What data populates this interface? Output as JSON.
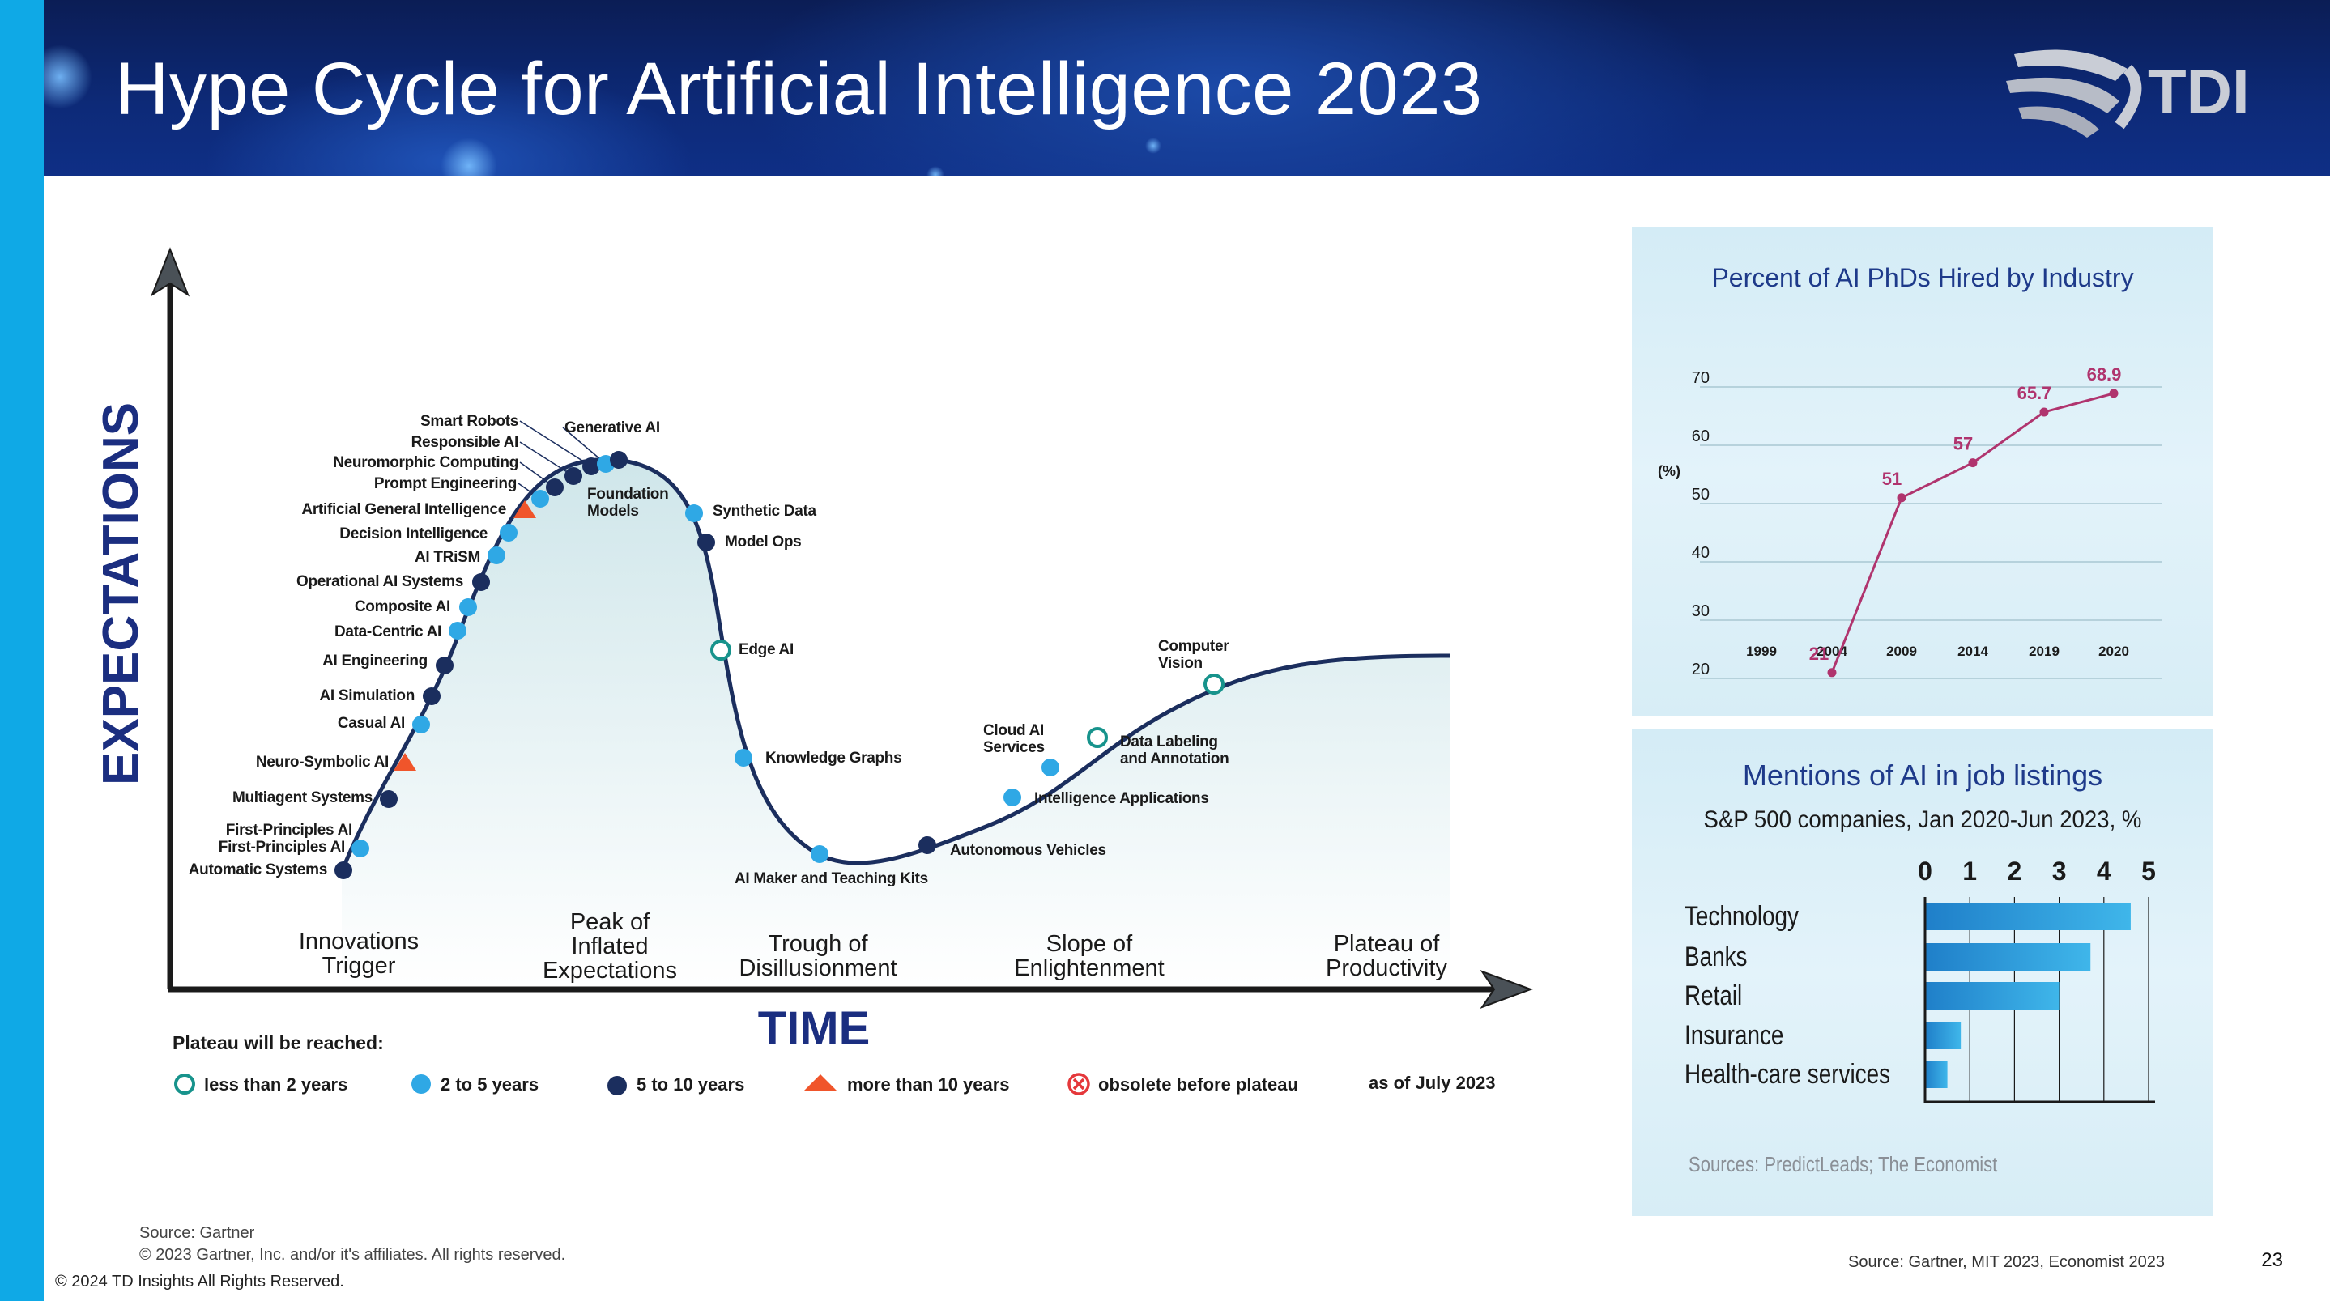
{
  "header": {
    "title": "Hype Cycle for Artificial Intelligence 2023",
    "logo_text": "TDI"
  },
  "hype_cycle": {
    "y_axis_label": "EXPECTATIONS",
    "x_axis_label": "TIME",
    "phases": [
      [
        "Innovations",
        "Trigger"
      ],
      [
        "Peak of",
        "Inflated",
        "Expectations"
      ],
      [
        "Trough of",
        "Disillusionment"
      ],
      [
        "Slope of",
        "Enlightenment"
      ],
      [
        "Plateau of",
        "Productivity"
      ]
    ],
    "legend_title": "Plateau will be reached:",
    "legend_items": [
      {
        "symbol": "ring",
        "label": "less than 2 years",
        "color": "#17938c"
      },
      {
        "symbol": "light-dot",
        "label": "2 to 5 years",
        "color": "#2fa8e5"
      },
      {
        "symbol": "dark-dot",
        "label": "5 to 10 years",
        "color": "#1b2e5e"
      },
      {
        "symbol": "triangle",
        "label": "more than 10 years",
        "color": "#f0552b"
      },
      {
        "symbol": "obsolete",
        "label": "obsolete before plateau",
        "color": "#e5383b"
      }
    ],
    "as_of": "as of July 2023",
    "technologies": [
      {
        "name": "Automatic Systems",
        "cls": "dark"
      },
      {
        "name": "First-Principles AI",
        "cls": "light"
      },
      {
        "name": "First-Principles AI",
        "cls": "light"
      },
      {
        "name": "Multiagent Systems",
        "cls": "dark"
      },
      {
        "name": "Neuro-Symbolic AI",
        "cls": "tri"
      },
      {
        "name": "Casual AI",
        "cls": "light"
      },
      {
        "name": "AI Simulation",
        "cls": "dark"
      },
      {
        "name": "AI Engineering",
        "cls": "dark"
      },
      {
        "name": "Data-Centric AI",
        "cls": "light"
      },
      {
        "name": "Composite AI",
        "cls": "light"
      },
      {
        "name": "Operational AI Systems",
        "cls": "dark"
      },
      {
        "name": "AI TRiSM",
        "cls": "light"
      },
      {
        "name": "Decision Intelligence",
        "cls": "light"
      },
      {
        "name": "Artificial General Intelligence",
        "cls": "tri"
      },
      {
        "name": "Prompt Engineering",
        "cls": "light"
      },
      {
        "name": "Neuromorphic Computing",
        "cls": "dark"
      },
      {
        "name": "Responsible AI",
        "cls": "dark"
      },
      {
        "name": "Smart Robots",
        "cls": "dark"
      },
      {
        "name": "Generative AI",
        "cls": "light"
      },
      {
        "name": "Foundation Models",
        "cls": "dark"
      },
      {
        "name": "Synthetic Data",
        "cls": "light"
      },
      {
        "name": "Model Ops",
        "cls": "dark"
      },
      {
        "name": "Edge AI",
        "cls": "ring"
      },
      {
        "name": "Knowledge Graphs",
        "cls": "light"
      },
      {
        "name": "AI Maker and Teaching Kits",
        "cls": "light"
      },
      {
        "name": "Autonomous Vehicles",
        "cls": "dark"
      },
      {
        "name": "Intelligence Applications",
        "cls": "light"
      },
      {
        "name": "Cloud AI Services",
        "cls": "light"
      },
      {
        "name": "Data Labeling and Annotation",
        "cls": "ring"
      },
      {
        "name": "Computer Vision",
        "cls": "ring"
      }
    ],
    "source_line1": "Source: Gartner",
    "source_line2": "© 2023 Gartner, Inc. and/or it's affiliates. All rights reserved."
  },
  "chart_data": [
    {
      "type": "line",
      "title": "Percent of AI PhDs Hired by Industry",
      "ylabel": "(%)",
      "x": [
        "1999",
        "2004",
        "2009",
        "2014",
        "2019",
        "2020"
      ],
      "points": [
        {
          "x": "2004",
          "y": 21,
          "label": "21"
        },
        {
          "x": "2009",
          "y": 51,
          "label": "51"
        },
        {
          "x": "2014",
          "y": 57,
          "label": "57"
        },
        {
          "x": "2019",
          "y": 65.7,
          "label": "65.7"
        },
        {
          "x": "2020",
          "y": 68.9,
          "label": "68.9"
        }
      ],
      "y_ticks": [
        20,
        30,
        40,
        50,
        60,
        70
      ],
      "ylim": [
        20,
        70
      ],
      "grid": true,
      "line_color": "#b0346e"
    },
    {
      "type": "bar",
      "orientation": "horizontal",
      "title": "Mentions of AI in job listings",
      "subtitle": "S&P 500 companies, Jan 2020-Jun 2023, %",
      "categories": [
        "Technology",
        "Banks",
        "Retail",
        "Insurance",
        "Health-care services"
      ],
      "values": [
        4.6,
        3.7,
        3.0,
        0.8,
        0.5
      ],
      "x_ticks": [
        0,
        1,
        2,
        3,
        4,
        5
      ],
      "xlim": [
        0,
        5
      ],
      "grid": true,
      "source": "Sources: PredictLeads; The Economist"
    }
  ],
  "footer": {
    "copyright": "© 2024 TD Insights All Rights Reserved.",
    "source_right": "Source: Gartner, MIT 2023, Economist 2023",
    "page_number": "23"
  }
}
